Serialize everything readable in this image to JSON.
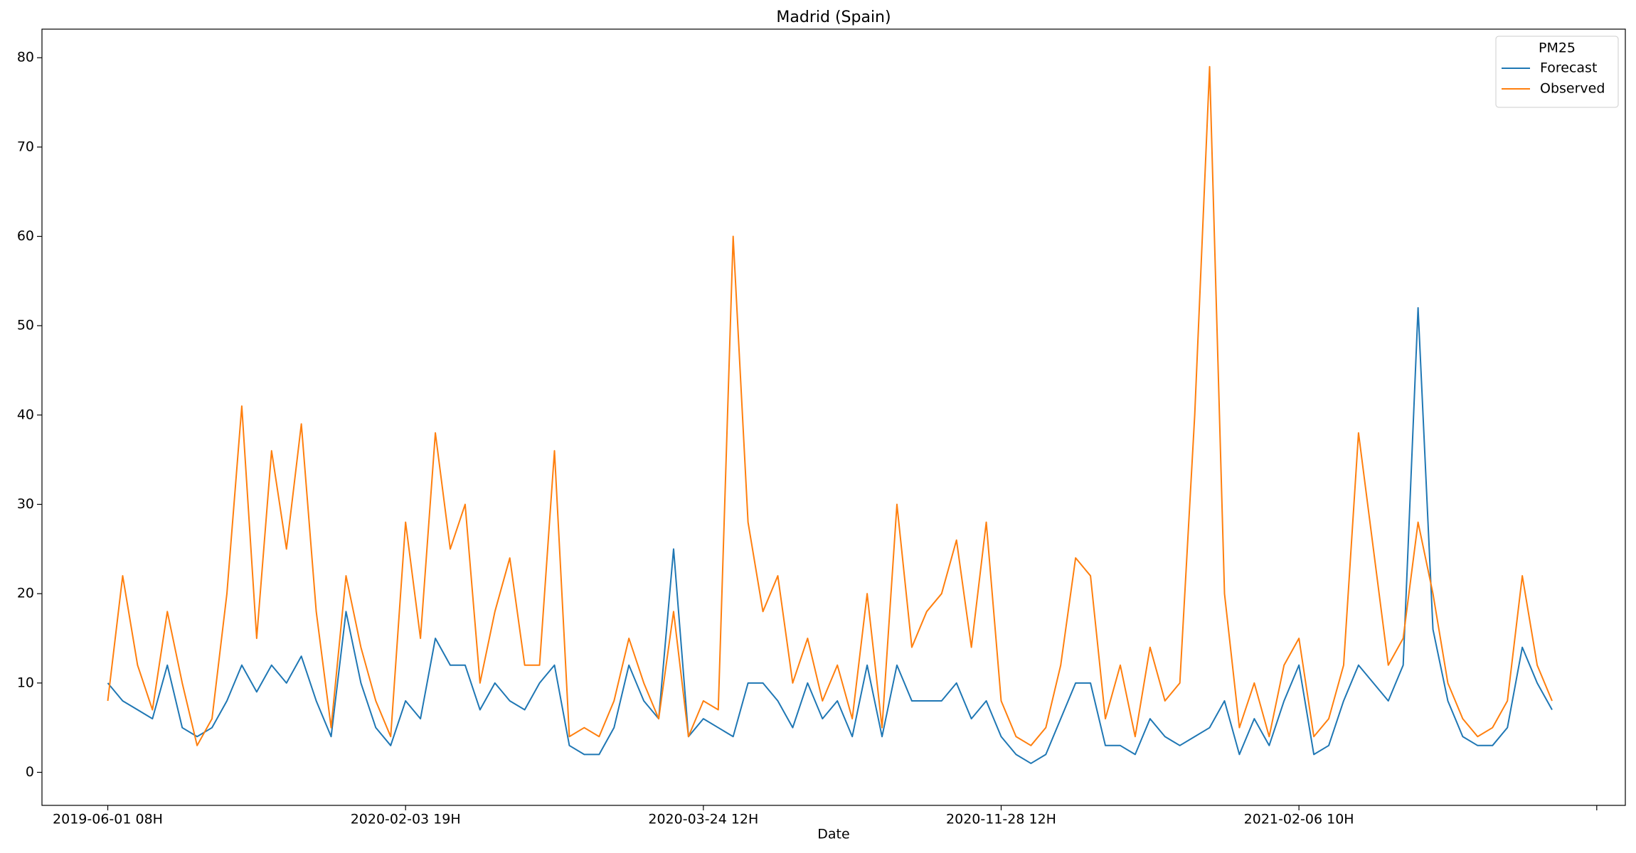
{
  "chart_data": {
    "type": "line",
    "title": "Madrid (Spain)",
    "x_label": "Date",
    "legend_title": "PM25",
    "legend": "upper right",
    "grid": false,
    "x": [
      0,
      50,
      100,
      150,
      200,
      250,
      300,
      350,
      400,
      450,
      500,
      550,
      600,
      650,
      700,
      750,
      800,
      850,
      900,
      950,
      1000,
      1050,
      1100,
      1150,
      1200,
      1250,
      1300,
      1350,
      1400,
      1450,
      1500,
      1550,
      1600,
      1650,
      1700,
      1750,
      1800,
      1850,
      1900,
      1950,
      2000,
      2050,
      2100,
      2150,
      2200,
      2250,
      2300,
      2350,
      2400,
      2450,
      2500,
      2550,
      2600,
      2650,
      2700,
      2750,
      2800,
      2850,
      2900,
      2950,
      3000,
      3050,
      3100,
      3150,
      3200,
      3250,
      3300,
      3350,
      3400,
      3450,
      3500,
      3550,
      3600,
      3650,
      3700,
      3750,
      3800,
      3850,
      3900,
      3950,
      4000,
      4050,
      4100,
      4150,
      4200,
      4250,
      4300,
      4350,
      4400,
      4450,
      4500,
      4550,
      4600,
      4650,
      4700,
      4750,
      4800,
      4850
    ],
    "series": [
      {
        "name": "Forecast",
        "color": "#1f77b4",
        "values": [
          10,
          8,
          7,
          6,
          12,
          5,
          4,
          5,
          8,
          12,
          9,
          12,
          10,
          13,
          8,
          4,
          18,
          10,
          5,
          3,
          8,
          6,
          15,
          12,
          12,
          7,
          10,
          8,
          7,
          10,
          12,
          3,
          2,
          2,
          5,
          12,
          8,
          6,
          25,
          4,
          6,
          5,
          4,
          10,
          10,
          8,
          5,
          10,
          6,
          8,
          4,
          12,
          4,
          12,
          8,
          8,
          8,
          10,
          6,
          8,
          4,
          2,
          1,
          2,
          6,
          10,
          10,
          3,
          3,
          2,
          6,
          4,
          3,
          4,
          5,
          8,
          2,
          6,
          3,
          8,
          12,
          2,
          3,
          8,
          12,
          10,
          8,
          12,
          52,
          16,
          8,
          4,
          3,
          3,
          5,
          14,
          10,
          7
        ]
      },
      {
        "name": "Observed",
        "color": "#ff7f0e",
        "values": [
          8,
          22,
          12,
          7,
          18,
          10,
          3,
          6,
          20,
          41,
          15,
          36,
          25,
          39,
          18,
          5,
          22,
          14,
          8,
          4,
          28,
          15,
          38,
          25,
          30,
          10,
          18,
          24,
          12,
          12,
          36,
          4,
          5,
          4,
          8,
          15,
          10,
          6,
          18,
          4,
          8,
          7,
          60,
          28,
          18,
          22,
          10,
          15,
          8,
          12,
          6,
          20,
          5,
          30,
          14,
          18,
          20,
          26,
          14,
          28,
          8,
          4,
          3,
          5,
          12,
          24,
          22,
          6,
          12,
          4,
          14,
          8,
          10,
          40,
          79,
          20,
          5,
          10,
          4,
          12,
          15,
          4,
          6,
          12,
          38,
          25,
          12,
          15,
          28,
          20,
          10,
          6,
          4,
          5,
          8,
          22,
          12,
          8
        ]
      }
    ],
    "xlim": [
      -221,
      5096
    ],
    "xticks": [
      {
        "value": 0,
        "label": "2019-06-01 08H"
      },
      {
        "value": 1000,
        "label": "2020-02-03 19H"
      },
      {
        "value": 2000,
        "label": "2020-03-24 12H"
      },
      {
        "value": 3000,
        "label": "2020-11-28 12H"
      },
      {
        "value": 4000,
        "label": "2021-02-06 10H"
      },
      {
        "value": 5000,
        "label": null
      }
    ],
    "ylim": [
      -3.7,
      83.2
    ],
    "yticks": [
      0,
      10,
      20,
      30,
      40,
      50,
      60,
      70,
      80
    ]
  }
}
